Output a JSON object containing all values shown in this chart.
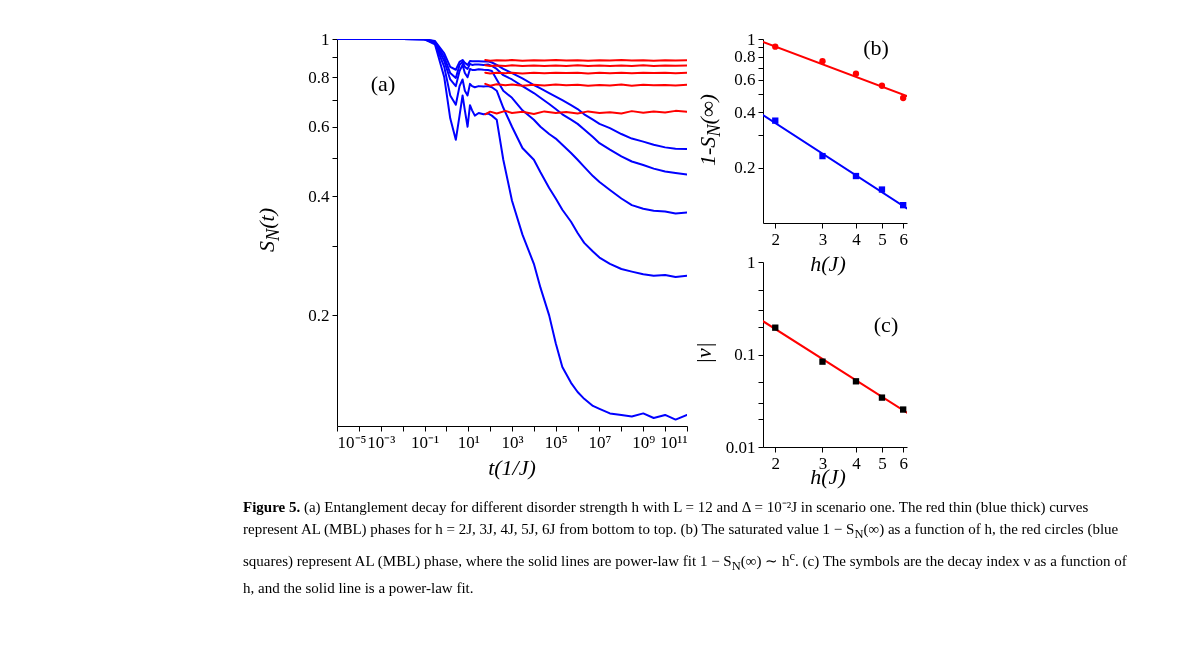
{
  "chart_data": [
    {
      "type": "line",
      "xlabel": "t(1/J)",
      "ylabel": "S$_{N}$(t)",
      "log": "xy",
      "xlim": [
        1e-05,
        100000000000.0
      ],
      "ylim": [
        0.105,
        1
      ],
      "xticks": [
        {
          "value": 1e-05,
          "label": "10⁻⁵"
        },
        {
          "value": 0.0001,
          "label": null
        },
        {
          "value": 0.001,
          "label": "10⁻³"
        },
        {
          "value": 0.01,
          "label": null
        },
        {
          "value": 0.1,
          "label": "10⁻¹"
        },
        {
          "value": 1,
          "label": null
        },
        {
          "value": 10,
          "label": "10¹"
        },
        {
          "value": 100,
          "label": null
        },
        {
          "value": 1000,
          "label": "10³"
        },
        {
          "value": 10000.0,
          "label": null
        },
        {
          "value": 100000.0,
          "label": "10⁵"
        },
        {
          "value": 1000000.0,
          "label": null
        },
        {
          "value": 10000000.0,
          "label": "10⁷"
        },
        {
          "value": 100000000.0,
          "label": null
        },
        {
          "value": 1000000000.0,
          "label": "10⁹"
        },
        {
          "value": 10000000000.0,
          "label": null
        },
        {
          "value": 100000000000.0,
          "label": "10¹¹"
        }
      ],
      "yticks": [
        0.2,
        {
          "value": 0.3,
          "label": null
        },
        0.4,
        {
          "value": 0.5,
          "label": null
        },
        0.6,
        {
          "value": 0.7,
          "label": null
        },
        0.8,
        {
          "value": 0.9,
          "label": null
        },
        1
      ],
      "annotations": [
        "(a)"
      ],
      "series": [
        {
          "color": "#0000ff",
          "x": [
            1e-05,
            0.001,
            0.01,
            0.1,
            0.3,
            0.8,
            1.5,
            2.7,
            4,
            5.5,
            7,
            9.3,
            12,
            15,
            20,
            30,
            50,
            80,
            120,
            200,
            400,
            1000,
            3000,
            10000.0,
            20000.0,
            50000.0,
            100000.0,
            200000.0,
            500000.0,
            1000000.0,
            2000000.0,
            5000000.0,
            10000000.0,
            30000000.0,
            100000000.0,
            300000000.0,
            1000000000.0,
            3000000000.0,
            10000000000.0,
            30000000000.0,
            100000000000.0
          ],
          "values": [
            1,
            1,
            1,
            0.998,
            0.97,
            0.8,
            0.63,
            0.556,
            0.64,
            0.72,
            0.66,
            0.6,
            0.68,
            0.66,
            0.64,
            0.65,
            0.645,
            0.648,
            0.64,
            0.625,
            0.495,
            0.39,
            0.32,
            0.27,
            0.235,
            0.2,
            0.17,
            0.148,
            0.135,
            0.128,
            0.123,
            0.118,
            0.116,
            0.113,
            0.112,
            0.111,
            0.113,
            0.11,
            0.112,
            0.109,
            0.112
          ]
        },
        {
          "color": "#0000ff",
          "x": [
            1e-05,
            0.001,
            0.01,
            0.1,
            0.3,
            0.8,
            1.5,
            2.7,
            4,
            5.5,
            7,
            9.3,
            12,
            15,
            20,
            30,
            50,
            80,
            120,
            200,
            400,
            1000,
            3000,
            10000.0,
            20000.0,
            50000.0,
            100000.0,
            200000.0,
            500000.0,
            1000000.0,
            2000000.0,
            5000000.0,
            10000000.0,
            30000000.0,
            100000000.0,
            300000000.0,
            1000000000.0,
            3000000000.0,
            10000000000.0,
            30000000000.0,
            100000000000.0
          ],
          "values": [
            1,
            1,
            1,
            0.998,
            0.975,
            0.85,
            0.72,
            0.682,
            0.76,
            0.79,
            0.74,
            0.72,
            0.77,
            0.76,
            0.755,
            0.76,
            0.758,
            0.76,
            0.755,
            0.74,
            0.67,
            0.6,
            0.53,
            0.495,
            0.46,
            0.42,
            0.395,
            0.37,
            0.345,
            0.323,
            0.305,
            0.29,
            0.28,
            0.27,
            0.262,
            0.258,
            0.254,
            0.252,
            0.253,
            0.25,
            0.252
          ]
        },
        {
          "color": "#0000ff",
          "x": [
            1e-05,
            0.001,
            0.01,
            0.1,
            0.3,
            0.8,
            1.5,
            2.7,
            4,
            5.5,
            7,
            9.3,
            12,
            15,
            20,
            30,
            50,
            80,
            120,
            200,
            400,
            1000,
            3000,
            10000.0,
            20000.0,
            50000.0,
            100000.0,
            200000.0,
            500000.0,
            1000000.0,
            2000000.0,
            5000000.0,
            10000000.0,
            30000000.0,
            100000000.0,
            300000000.0,
            1000000000.0,
            3000000000.0,
            10000000000.0,
            30000000000.0,
            100000000000.0
          ],
          "values": [
            1,
            1,
            1,
            0.999,
            0.98,
            0.88,
            0.79,
            0.76,
            0.83,
            0.86,
            0.82,
            0.8,
            0.84,
            0.835,
            0.835,
            0.838,
            0.836,
            0.835,
            0.83,
            0.79,
            0.74,
            0.71,
            0.66,
            0.625,
            0.6,
            0.575,
            0.56,
            0.54,
            0.515,
            0.495,
            0.475,
            0.45,
            0.435,
            0.415,
            0.395,
            0.38,
            0.372,
            0.368,
            0.366,
            0.362,
            0.364
          ]
        },
        {
          "color": "#0000ff",
          "x": [
            1e-05,
            0.001,
            0.01,
            0.1,
            0.3,
            0.8,
            1.5,
            2.7,
            4,
            5.5,
            7,
            9.3,
            12,
            15,
            20,
            30,
            50,
            80,
            120,
            200,
            400,
            1000,
            3000,
            10000.0,
            20000.0,
            50000.0,
            100000.0,
            200000.0,
            500000.0,
            1000000.0,
            2000000.0,
            5000000.0,
            10000000.0,
            30000000.0,
            100000000.0,
            300000000.0,
            1000000000.0,
            3000000000.0,
            10000000000.0,
            30000000000.0,
            100000000000.0
          ],
          "values": [
            1,
            1,
            1,
            0.999,
            0.985,
            0.9,
            0.82,
            0.797,
            0.86,
            0.875,
            0.85,
            0.84,
            0.865,
            0.86,
            0.862,
            0.862,
            0.86,
            0.862,
            0.855,
            0.84,
            0.81,
            0.79,
            0.76,
            0.73,
            0.71,
            0.685,
            0.665,
            0.645,
            0.625,
            0.61,
            0.59,
            0.565,
            0.545,
            0.525,
            0.505,
            0.49,
            0.48,
            0.47,
            0.462,
            0.458,
            0.454
          ]
        },
        {
          "color": "#0000ff",
          "x": [
            1e-05,
            0.001,
            0.01,
            0.1,
            0.3,
            0.8,
            1.5,
            2.7,
            4,
            5.5,
            7,
            9.3,
            12,
            15,
            20,
            30,
            50,
            80,
            120,
            200,
            400,
            1000,
            3000,
            10000.0,
            20000.0,
            50000.0,
            100000.0,
            200000.0,
            500000.0,
            1000000.0,
            2000000.0,
            5000000.0,
            10000000.0,
            30000000.0,
            100000000.0,
            300000000.0,
            1000000000.0,
            3000000000.0,
            10000000000.0,
            30000000000.0,
            100000000000.0
          ],
          "values": [
            1,
            1,
            1,
            0.999,
            0.988,
            0.92,
            0.85,
            0.836,
            0.875,
            0.885,
            0.87,
            0.86,
            0.88,
            0.878,
            0.878,
            0.878,
            0.877,
            0.878,
            0.872,
            0.86,
            0.84,
            0.82,
            0.795,
            0.765,
            0.75,
            0.73,
            0.715,
            0.7,
            0.68,
            0.665,
            0.645,
            0.625,
            0.61,
            0.595,
            0.575,
            0.56,
            0.55,
            0.54,
            0.532,
            0.528,
            0.527
          ]
        },
        {
          "color": "#ff0000",
          "x": [
            60,
            100,
            200,
            500,
            1000,
            3000,
            10000.0,
            30000.0,
            100000.0,
            300000.0,
            1000000.0,
            3000000.0,
            10000000.0,
            30000000.0,
            100000000.0,
            300000000.0,
            1000000000.0,
            3000000000.0,
            10000000000.0,
            30000000000.0,
            100000000000.0
          ],
          "values": [
            0.645,
            0.655,
            0.648,
            0.658,
            0.65,
            0.655,
            0.646,
            0.656,
            0.65,
            0.654,
            0.648,
            0.656,
            0.65,
            0.653,
            0.648,
            0.657,
            0.651,
            0.656,
            0.652,
            0.658,
            0.655
          ]
        },
        {
          "color": "#ff0000",
          "x": [
            60,
            100,
            200,
            500,
            1000,
            3000,
            10000.0,
            30000.0,
            100000.0,
            300000.0,
            1000000.0,
            3000000.0,
            10000000.0,
            30000000.0,
            100000000.0,
            300000000.0,
            1000000000.0,
            3000000000.0,
            10000000000.0,
            30000000000.0,
            100000000000.0
          ],
          "values": [
            0.77,
            0.762,
            0.768,
            0.764,
            0.767,
            0.762,
            0.766,
            0.763,
            0.767,
            0.764,
            0.766,
            0.762,
            0.765,
            0.763,
            0.767,
            0.762,
            0.766,
            0.764,
            0.765,
            0.763,
            0.766
          ]
        },
        {
          "color": "#ff0000",
          "x": [
            60,
            100,
            200,
            500,
            1000,
            3000,
            10000.0,
            30000.0,
            100000.0,
            300000.0,
            1000000.0,
            3000000.0,
            10000000.0,
            30000000.0,
            100000000.0,
            300000000.0,
            1000000000.0,
            3000000000.0,
            10000000000.0,
            30000000000.0,
            100000000000.0
          ],
          "values": [
            0.822,
            0.818,
            0.821,
            0.819,
            0.822,
            0.818,
            0.821,
            0.819,
            0.822,
            0.82,
            0.821,
            0.818,
            0.821,
            0.819,
            0.822,
            0.819,
            0.821,
            0.82,
            0.822,
            0.819,
            0.821
          ]
        },
        {
          "color": "#ff0000",
          "x": [
            60,
            100,
            200,
            500,
            1000,
            3000,
            10000.0,
            30000.0,
            100000.0,
            300000.0,
            1000000.0,
            3000000.0,
            10000000.0,
            30000000.0,
            100000000.0,
            300000000.0,
            1000000000.0,
            3000000000.0,
            10000000000.0,
            30000000000.0,
            100000000000.0
          ],
          "values": [
            0.858,
            0.854,
            0.857,
            0.855,
            0.858,
            0.854,
            0.857,
            0.855,
            0.857,
            0.855,
            0.858,
            0.854,
            0.857,
            0.855,
            0.857,
            0.855,
            0.858,
            0.854,
            0.857,
            0.856,
            0.857
          ]
        },
        {
          "color": "#ff0000",
          "x": [
            60,
            100,
            200,
            500,
            1000,
            3000,
            10000.0,
            30000.0,
            100000.0,
            300000.0,
            1000000.0,
            3000000.0,
            10000000.0,
            30000000.0,
            100000000.0,
            300000000.0,
            1000000000.0,
            3000000000.0,
            10000000000.0,
            30000000000.0,
            100000000000.0
          ],
          "values": [
            0.885,
            0.881,
            0.884,
            0.882,
            0.885,
            0.881,
            0.884,
            0.882,
            0.885,
            0.882,
            0.884,
            0.881,
            0.884,
            0.882,
            0.885,
            0.882,
            0.884,
            0.881,
            0.884,
            0.882,
            0.884
          ]
        }
      ]
    },
    {
      "type": "scatter",
      "xlabel": "h(J)",
      "ylabel": "1-S$_{N}$(∞)",
      "log": "xy",
      "xlim": [
        1.8,
        6.2
      ],
      "ylim": [
        0.1,
        1
      ],
      "xticks": [
        2,
        3,
        4,
        5,
        6
      ],
      "yticks": [
        0.2,
        {
          "value": 0.3,
          "label": null
        },
        0.4,
        {
          "value": 0.5,
          "label": null
        },
        0.6,
        {
          "value": 0.7,
          "label": null
        },
        0.8,
        {
          "value": 0.9,
          "label": null
        },
        1
      ],
      "annotations": [
        "(b)"
      ],
      "series": [
        {
          "type": "line",
          "color": "#ff0000",
          "x": [
            1.8,
            6.2
          ],
          "values": [
            0.964,
            0.49
          ]
        },
        {
          "type": "scatter",
          "marker": "circle",
          "color": "#ff0000",
          "x": [
            2,
            3,
            4,
            5,
            6
          ],
          "values": [
            0.908,
            0.757,
            0.648,
            0.557,
            0.478
          ]
        },
        {
          "type": "line",
          "color": "#0000ff",
          "x": [
            1.8,
            6.2
          ],
          "values": [
            0.386,
            0.12
          ]
        },
        {
          "type": "scatter",
          "marker": "square",
          "color": "#0000ff",
          "x": [
            2,
            3,
            4,
            5,
            6
          ],
          "values": [
            0.36,
            0.231,
            0.18,
            0.152,
            0.125
          ]
        }
      ]
    },
    {
      "type": "scatter",
      "xlabel": "h(J)",
      "ylabel": "|ν|",
      "log": "xy",
      "xlim": [
        1.8,
        6.2
      ],
      "ylim": [
        0.01,
        1
      ],
      "xticks": [
        2,
        3,
        4,
        5,
        6
      ],
      "yticks": [
        0.01,
        {
          "value": 0.02,
          "label": null
        },
        {
          "value": 0.03,
          "label": null
        },
        {
          "value": 0.05,
          "label": null
        },
        0.1,
        {
          "value": 0.2,
          "label": null
        },
        {
          "value": 0.3,
          "label": null
        },
        {
          "value": 0.5,
          "label": null
        },
        1
      ],
      "annotations": [
        "(c)"
      ],
      "series": [
        {
          "type": "line",
          "color": "#ff0000",
          "x": [
            1.8,
            6.2
          ],
          "values": [
            0.229,
            0.0235
          ]
        },
        {
          "type": "scatter",
          "marker": "square",
          "color": "#000000",
          "x": [
            2,
            3,
            4,
            5,
            6
          ],
          "values": [
            0.195,
            0.0837,
            0.0513,
            0.0342,
            0.0254
          ]
        }
      ]
    },
    {
      "type": "other",
      "annotations": [
        "Figure 5.",
        "(a) Entanglement decay for different disorder strength h with L = 12 and Δ = 10⁻²J in scenario one. The red thin (blue thick) curves represent AL (MBL) phases for h = 2J, 3J, 4J, 5J, 6J from bottom to top. (b) The saturated value 1 − S$_{N}$(∞) as a function of h, the red circles (blue squares) represent AL (MBL) phase, where the solid lines are power-law fit 1 − S$_{N}$(∞) ∼ h$^{c}$. (c) The symbols are the decay index ν as a function of h, and the solid line is a power-law fit."
      ]
    }
  ]
}
